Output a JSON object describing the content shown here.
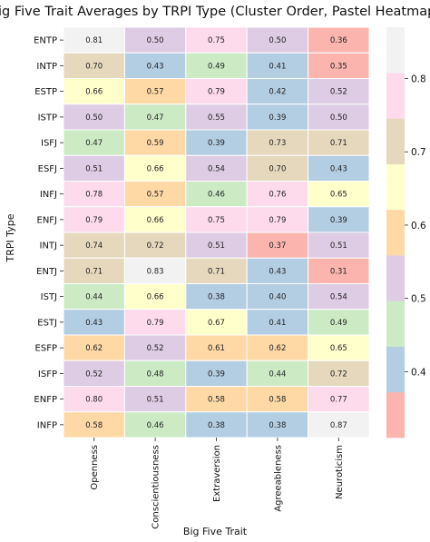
{
  "chart_data": {
    "type": "heatmap",
    "title": "Big Five Trait Averages by TRPI Type (Cluster Order, Pastel Heatmap)",
    "xlabel": "Big Five Trait",
    "ylabel": "TRPI Type",
    "columns": [
      "Openness",
      "Conscientiousness",
      "Extraversion",
      "Agreeableness",
      "Neuroticism"
    ],
    "rows": [
      "ENTP",
      "INTP",
      "ESTP",
      "ISTP",
      "ISFJ",
      "ESFJ",
      "INFJ",
      "ENFJ",
      "INTJ",
      "ENTJ",
      "ISTJ",
      "ESTJ",
      "ESFP",
      "ISFP",
      "ENFP",
      "INFP"
    ],
    "values": [
      [
        0.81,
        0.5,
        0.75,
        0.5,
        0.36
      ],
      [
        0.7,
        0.43,
        0.49,
        0.41,
        0.35
      ],
      [
        0.66,
        0.57,
        0.79,
        0.42,
        0.52
      ],
      [
        0.5,
        0.47,
        0.55,
        0.39,
        0.5
      ],
      [
        0.47,
        0.59,
        0.39,
        0.73,
        0.71
      ],
      [
        0.51,
        0.66,
        0.54,
        0.7,
        0.43
      ],
      [
        0.78,
        0.57,
        0.46,
        0.76,
        0.65
      ],
      [
        0.79,
        0.66,
        0.75,
        0.79,
        0.39
      ],
      [
        0.74,
        0.72,
        0.51,
        0.37,
        0.51
      ],
      [
        0.71,
        0.83,
        0.71,
        0.43,
        0.31
      ],
      [
        0.44,
        0.66,
        0.38,
        0.4,
        0.54
      ],
      [
        0.43,
        0.79,
        0.67,
        0.41,
        0.49
      ],
      [
        0.62,
        0.52,
        0.61,
        0.62,
        0.65
      ],
      [
        0.52,
        0.48,
        0.39,
        0.44,
        0.72
      ],
      [
        0.8,
        0.51,
        0.58,
        0.58,
        0.77
      ],
      [
        0.58,
        0.46,
        0.38,
        0.38,
        0.87
      ]
    ],
    "value_format": "0.00",
    "colormap": "Pastel1",
    "vmin": 0.31,
    "vmax": 0.87,
    "palette": [
      "#fbb4ae",
      "#b3cde3",
      "#ccebc5",
      "#decbe4",
      "#fed9a6",
      "#ffffcc",
      "#e5d8bd",
      "#fddaec",
      "#f2f2f2"
    ],
    "colorbar_ticks": [
      0.4,
      0.5,
      0.6,
      0.7,
      0.8
    ],
    "colorbar_placement": "right",
    "cell_border_color": "#ffffff",
    "grid": false
  }
}
